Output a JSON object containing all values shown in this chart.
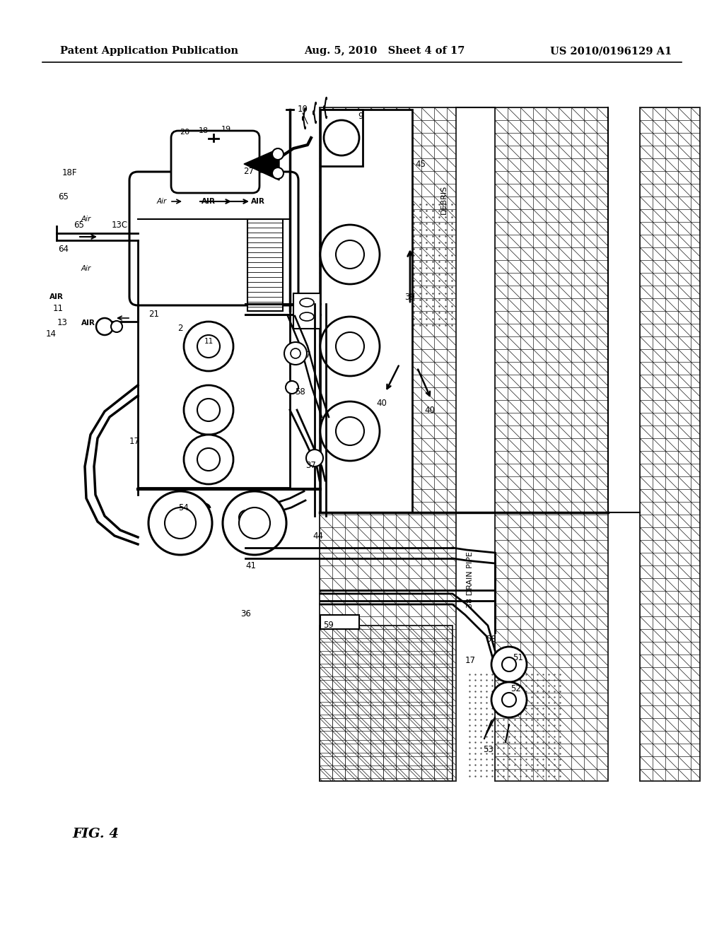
{
  "bg_color": "#ffffff",
  "header_left": "Patent Application Publication",
  "header_mid": "Aug. 5, 2010   Sheet 4 of 17",
  "header_right": "US 2010/0196129 A1",
  "fig_label": "FIG. 4",
  "title_fontsize": 10.5,
  "fig_label_fontsize": 14,
  "hatch_color": "#1a1a1a",
  "line_color": "#000000"
}
